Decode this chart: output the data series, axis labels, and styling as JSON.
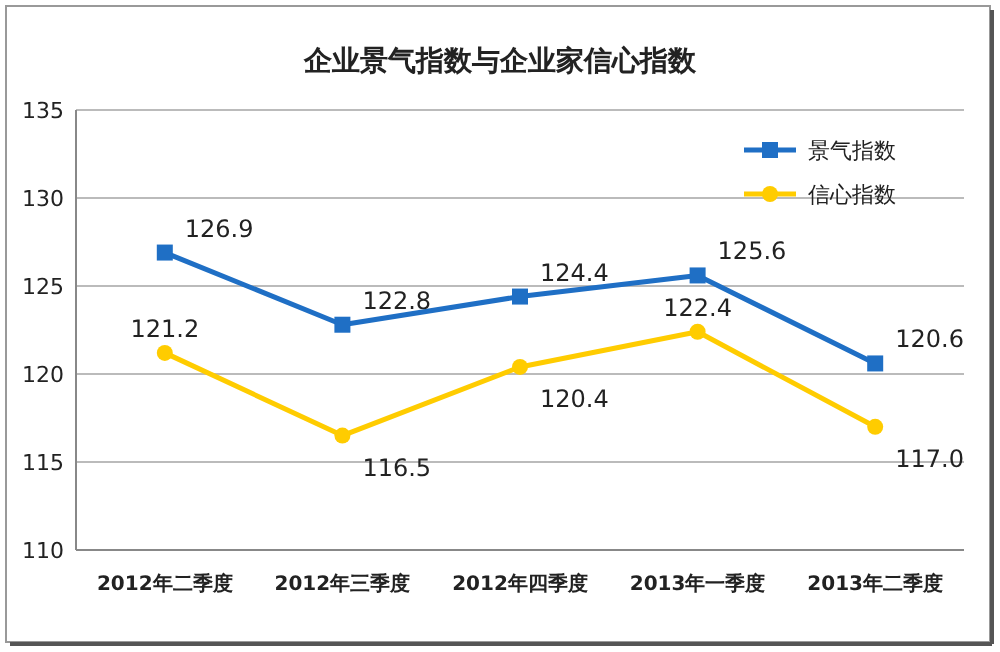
{
  "chart_data": {
    "type": "line",
    "title": "企业景气指数与企业家信心指数",
    "categories": [
      "2012年二季度",
      "2012年三季度",
      "2012年四季度",
      "2013年一季度",
      "2013年二季度"
    ],
    "series": [
      {
        "name": "景气指数",
        "color": "#1f6fc5",
        "marker": "square",
        "values": [
          126.9,
          122.8,
          124.4,
          125.6,
          120.6
        ],
        "value_labels": [
          "126.9",
          "122.8",
          "124.4",
          "125.6",
          "120.6"
        ]
      },
      {
        "name": "信心指数",
        "color": "#ffcc00",
        "marker": "circle",
        "values": [
          121.2,
          116.5,
          120.4,
          122.4,
          117.0
        ],
        "value_labels": [
          "121.2",
          "116.5",
          "120.4",
          "122.4",
          "117.0"
        ]
      }
    ],
    "ylim": [
      110,
      135
    ],
    "yticks": [
      110,
      115,
      120,
      125,
      130,
      135
    ],
    "grid": "y",
    "legend": "top right"
  }
}
